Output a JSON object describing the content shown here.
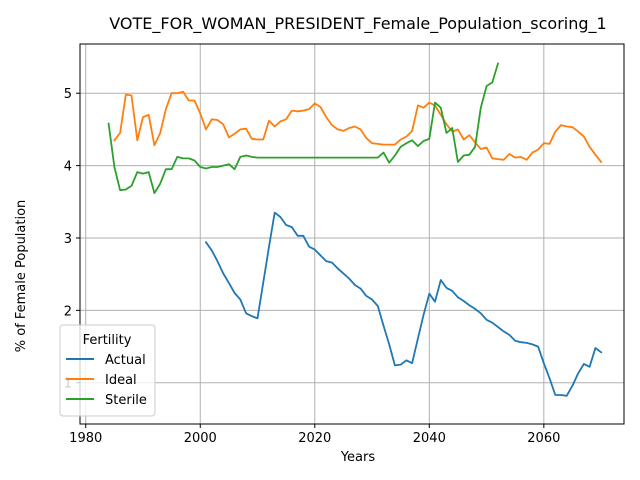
{
  "chart_data": {
    "type": "line",
    "title": "VOTE_FOR_WOMAN_PRESIDENT_Female_Population_scoring_1",
    "xlabel": "Years",
    "ylabel": "% of Female Population",
    "xlim": [
      1979,
      2074
    ],
    "ylim": [
      0.43,
      5.68
    ],
    "xticks": [
      1980,
      2000,
      2020,
      2040,
      2060
    ],
    "yticks": [
      1,
      2,
      3,
      4,
      5
    ],
    "grid": true,
    "legend": {
      "title": "Fertility",
      "placement": "lower-left"
    },
    "series": [
      {
        "name": "Actual",
        "color": "#1f77b4",
        "points": [
          [
            2001,
            2.94
          ],
          [
            2002,
            2.83
          ],
          [
            2003,
            2.68
          ],
          [
            2004,
            2.51
          ],
          [
            2005,
            2.38
          ],
          [
            2006,
            2.24
          ],
          [
            2007,
            2.15
          ],
          [
            2008,
            1.96
          ],
          [
            2009,
            1.92
          ],
          [
            2010,
            1.89
          ],
          [
            2011,
            2.38
          ],
          [
            2012,
            2.88
          ],
          [
            2013,
            3.35
          ],
          [
            2014,
            3.29
          ],
          [
            2015,
            3.18
          ],
          [
            2016,
            3.15
          ],
          [
            2017,
            3.03
          ],
          [
            2018,
            3.03
          ],
          [
            2019,
            2.88
          ],
          [
            2020,
            2.84
          ],
          [
            2021,
            2.76
          ],
          [
            2022,
            2.68
          ],
          [
            2023,
            2.66
          ],
          [
            2024,
            2.58
          ],
          [
            2025,
            2.51
          ],
          [
            2026,
            2.44
          ],
          [
            2027,
            2.35
          ],
          [
            2028,
            2.3
          ],
          [
            2029,
            2.2
          ],
          [
            2030,
            2.15
          ],
          [
            2031,
            2.06
          ],
          [
            2032,
            1.79
          ],
          [
            2033,
            1.53
          ],
          [
            2034,
            1.24
          ],
          [
            2035,
            1.25
          ],
          [
            2036,
            1.31
          ],
          [
            2037,
            1.27
          ],
          [
            2038,
            1.61
          ],
          [
            2039,
            1.94
          ],
          [
            2040,
            2.23
          ],
          [
            2041,
            2.12
          ],
          [
            2042,
            2.42
          ],
          [
            2043,
            2.31
          ],
          [
            2044,
            2.27
          ],
          [
            2045,
            2.18
          ],
          [
            2046,
            2.13
          ],
          [
            2047,
            2.07
          ],
          [
            2048,
            2.02
          ],
          [
            2049,
            1.96
          ],
          [
            2050,
            1.87
          ],
          [
            2051,
            1.83
          ],
          [
            2052,
            1.77
          ],
          [
            2053,
            1.71
          ],
          [
            2054,
            1.66
          ],
          [
            2055,
            1.58
          ],
          [
            2056,
            1.56
          ],
          [
            2057,
            1.55
          ],
          [
            2058,
            1.53
          ],
          [
            2059,
            1.5
          ],
          [
            2060,
            1.27
          ],
          [
            2061,
            1.06
          ],
          [
            2062,
            0.83
          ],
          [
            2063,
            0.83
          ],
          [
            2064,
            0.82
          ],
          [
            2065,
            0.96
          ],
          [
            2066,
            1.13
          ],
          [
            2067,
            1.26
          ],
          [
            2068,
            1.22
          ],
          [
            2069,
            1.48
          ],
          [
            2070,
            1.42
          ]
        ]
      },
      {
        "name": "Ideal",
        "color": "#ff7f0e",
        "points": [
          [
            1985,
            4.35
          ],
          [
            1986,
            4.45
          ],
          [
            1987,
            4.98
          ],
          [
            1988,
            4.97
          ],
          [
            1989,
            4.35
          ],
          [
            1990,
            4.67
          ],
          [
            1991,
            4.7
          ],
          [
            1992,
            4.28
          ],
          [
            1993,
            4.45
          ],
          [
            1994,
            4.78
          ],
          [
            1995,
            5.0
          ],
          [
            1996,
            5.0
          ],
          [
            1997,
            5.02
          ],
          [
            1998,
            4.9
          ],
          [
            1999,
            4.9
          ],
          [
            2000,
            4.72
          ],
          [
            2001,
            4.5
          ],
          [
            2002,
            4.64
          ],
          [
            2003,
            4.63
          ],
          [
            2004,
            4.57
          ],
          [
            2005,
            4.39
          ],
          [
            2006,
            4.44
          ],
          [
            2007,
            4.5
          ],
          [
            2008,
            4.51
          ],
          [
            2009,
            4.37
          ],
          [
            2010,
            4.36
          ],
          [
            2011,
            4.36
          ],
          [
            2012,
            4.62
          ],
          [
            2013,
            4.54
          ],
          [
            2014,
            4.61
          ],
          [
            2015,
            4.64
          ],
          [
            2016,
            4.76
          ],
          [
            2017,
            4.75
          ],
          [
            2018,
            4.76
          ],
          [
            2019,
            4.78
          ],
          [
            2020,
            4.86
          ],
          [
            2021,
            4.81
          ],
          [
            2022,
            4.67
          ],
          [
            2023,
            4.56
          ],
          [
            2024,
            4.5
          ],
          [
            2025,
            4.48
          ],
          [
            2026,
            4.52
          ],
          [
            2027,
            4.54
          ],
          [
            2028,
            4.5
          ],
          [
            2029,
            4.38
          ],
          [
            2030,
            4.31
          ],
          [
            2031,
            4.3
          ],
          [
            2032,
            4.29
          ],
          [
            2033,
            4.29
          ],
          [
            2034,
            4.29
          ],
          [
            2035,
            4.36
          ],
          [
            2036,
            4.4
          ],
          [
            2037,
            4.48
          ],
          [
            2038,
            4.83
          ],
          [
            2039,
            4.8
          ],
          [
            2040,
            4.87
          ],
          [
            2041,
            4.83
          ],
          [
            2042,
            4.7
          ],
          [
            2043,
            4.57
          ],
          [
            2044,
            4.47
          ],
          [
            2045,
            4.5
          ],
          [
            2046,
            4.36
          ],
          [
            2047,
            4.42
          ],
          [
            2048,
            4.32
          ],
          [
            2049,
            4.23
          ],
          [
            2050,
            4.25
          ],
          [
            2051,
            4.1
          ],
          [
            2052,
            4.09
          ],
          [
            2053,
            4.08
          ],
          [
            2054,
            4.16
          ],
          [
            2055,
            4.11
          ],
          [
            2056,
            4.12
          ],
          [
            2057,
            4.08
          ],
          [
            2058,
            4.18
          ],
          [
            2059,
            4.22
          ],
          [
            2060,
            4.31
          ],
          [
            2061,
            4.3
          ],
          [
            2062,
            4.47
          ],
          [
            2063,
            4.56
          ],
          [
            2064,
            4.54
          ],
          [
            2065,
            4.53
          ],
          [
            2066,
            4.47
          ],
          [
            2067,
            4.4
          ],
          [
            2068,
            4.26
          ],
          [
            2069,
            4.15
          ],
          [
            2070,
            4.05
          ]
        ]
      },
      {
        "name": "Sterile",
        "color": "#2ca02c",
        "points": [
          [
            1984,
            4.58
          ],
          [
            1985,
            3.98
          ],
          [
            1986,
            3.66
          ],
          [
            1987,
            3.67
          ],
          [
            1988,
            3.72
          ],
          [
            1989,
            3.91
          ],
          [
            1990,
            3.89
          ],
          [
            1991,
            3.91
          ],
          [
            1992,
            3.62
          ],
          [
            1993,
            3.75
          ],
          [
            1994,
            3.95
          ],
          [
            1995,
            3.95
          ],
          [
            1996,
            4.12
          ],
          [
            1997,
            4.1
          ],
          [
            1998,
            4.1
          ],
          [
            1999,
            4.07
          ],
          [
            2000,
            3.98
          ],
          [
            2001,
            3.96
          ],
          [
            2002,
            3.98
          ],
          [
            2003,
            3.98
          ],
          [
            2004,
            4.0
          ],
          [
            2005,
            4.02
          ],
          [
            2006,
            3.95
          ],
          [
            2007,
            4.12
          ],
          [
            2008,
            4.14
          ],
          [
            2009,
            4.12
          ],
          [
            2010,
            4.11
          ],
          [
            2011,
            4.11
          ],
          [
            2012,
            4.11
          ],
          [
            2013,
            4.11
          ],
          [
            2014,
            4.11
          ],
          [
            2015,
            4.11
          ],
          [
            2016,
            4.11
          ],
          [
            2017,
            4.11
          ],
          [
            2018,
            4.11
          ],
          [
            2019,
            4.11
          ],
          [
            2020,
            4.11
          ],
          [
            2021,
            4.11
          ],
          [
            2022,
            4.11
          ],
          [
            2023,
            4.11
          ],
          [
            2024,
            4.11
          ],
          [
            2025,
            4.11
          ],
          [
            2026,
            4.11
          ],
          [
            2027,
            4.11
          ],
          [
            2028,
            4.11
          ],
          [
            2029,
            4.11
          ],
          [
            2030,
            4.11
          ],
          [
            2031,
            4.11
          ],
          [
            2032,
            4.18
          ],
          [
            2033,
            4.04
          ],
          [
            2034,
            4.14
          ],
          [
            2035,
            4.26
          ],
          [
            2036,
            4.31
          ],
          [
            2037,
            4.35
          ],
          [
            2038,
            4.27
          ],
          [
            2039,
            4.34
          ],
          [
            2040,
            4.37
          ],
          [
            2041,
            4.87
          ],
          [
            2042,
            4.8
          ],
          [
            2043,
            4.45
          ],
          [
            2044,
            4.52
          ],
          [
            2045,
            4.05
          ],
          [
            2046,
            4.14
          ],
          [
            2047,
            4.15
          ],
          [
            2048,
            4.26
          ],
          [
            2049,
            4.8
          ],
          [
            2050,
            5.1
          ],
          [
            2051,
            5.15
          ],
          [
            2052,
            5.41
          ]
        ]
      }
    ]
  }
}
